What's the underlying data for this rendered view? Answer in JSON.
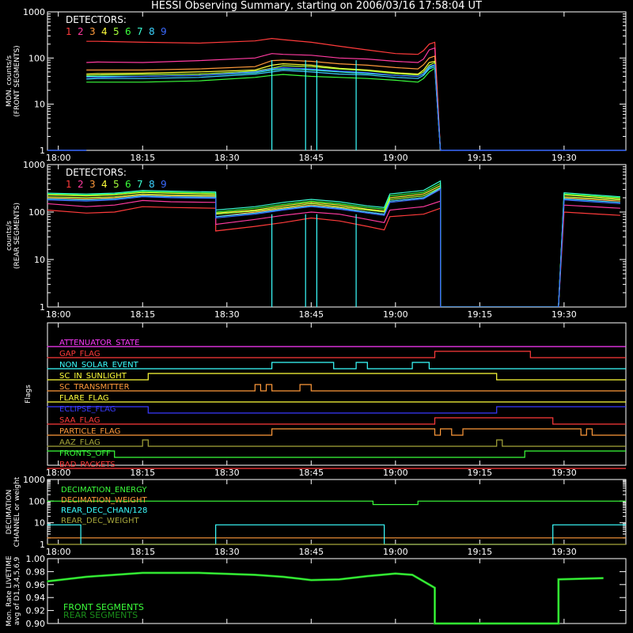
{
  "title": "HESSI Observing Summary, starting on 2006/03/16 17:58:04 UT",
  "time_ticks": [
    "18:00",
    "18:15",
    "18:30",
    "18:45",
    "19:00",
    "19:15",
    "19:30"
  ],
  "detector_colors": [
    "#ff3b3b",
    "#ff3ba0",
    "#ff9a3b",
    "#ffff3b",
    "#a6ff3b",
    "#3bff3b",
    "#3bffd2",
    "#3bd2ff",
    "#3b6aff"
  ],
  "chart_data": [
    {
      "type": "line",
      "name": "front",
      "ylabel": [
        "MON. counts/s",
        "(FRONT SEGMENTS)"
      ],
      "legend_title": "DETECTORS:",
      "legend_labels": [
        "1",
        "2",
        "3",
        "4",
        "5",
        "6",
        "7",
        "8",
        "9"
      ],
      "yscale": "log",
      "ylim": [
        1,
        1000
      ],
      "ytick_labels": [
        "1",
        "10",
        "100",
        "1000"
      ],
      "x": [
        "18:05",
        "18:07",
        "18:15",
        "18:25",
        "18:35",
        "18:38",
        "18:40",
        "18:45",
        "18:50",
        "18:55",
        "19:00",
        "19:04",
        "19:05",
        "19:06",
        "19:07",
        "19:08"
      ],
      "series": [
        {
          "values": [
            230,
            230,
            220,
            210,
            235,
            265,
            250,
            220,
            180,
            150,
            125,
            120,
            145,
            200,
            220,
            1
          ]
        },
        {
          "values": [
            80,
            82,
            80,
            88,
            100,
            125,
            120,
            115,
            100,
            95,
            85,
            80,
            95,
            150,
            165,
            1
          ]
        },
        {
          "values": [
            55,
            55,
            55,
            58,
            65,
            88,
            90,
            85,
            75,
            70,
            62,
            58,
            72,
            100,
            110,
            1
          ]
        },
        {
          "values": [
            45,
            46,
            47,
            50,
            55,
            70,
            75,
            70,
            60,
            55,
            48,
            45,
            55,
            80,
            85,
            1
          ]
        },
        {
          "values": [
            42,
            43,
            44,
            45,
            52,
            60,
            68,
            65,
            58,
            53,
            46,
            43,
            50,
            70,
            80,
            1
          ]
        },
        {
          "values": [
            30,
            30,
            30,
            32,
            38,
            42,
            44,
            40,
            38,
            36,
            33,
            30,
            36,
            50,
            60,
            1
          ]
        },
        {
          "values": [
            40,
            40,
            40,
            42,
            48,
            55,
            58,
            55,
            50,
            46,
            42,
            40,
            45,
            62,
            70,
            1
          ]
        },
        {
          "values": [
            35,
            36,
            36,
            38,
            45,
            50,
            54,
            50,
            45,
            43,
            38,
            36,
            42,
            58,
            64,
            1
          ]
        },
        {
          "values": [
            38,
            38,
            40,
            42,
            50,
            58,
            62,
            58,
            52,
            48,
            42,
            40,
            46,
            66,
            72,
            1
          ]
        }
      ]
    },
    {
      "type": "line",
      "name": "rear",
      "ylabel": [
        "counts/s",
        "(REAR SEGMENTS)"
      ],
      "legend_title": "DETECTORS:",
      "legend_labels": [
        "1",
        "2",
        "3",
        "4",
        "5",
        "6",
        "7",
        "8",
        "9"
      ],
      "yscale": "log",
      "ylim": [
        1,
        1000
      ],
      "ytick_labels": [
        "1",
        "10",
        "100",
        "1000"
      ],
      "x": [
        "17:58",
        "18:05",
        "18:10",
        "18:15",
        "18:20",
        "18:28",
        "18:28",
        "18:35",
        "18:40",
        "18:45",
        "18:50",
        "18:55",
        "18:58",
        "18:59",
        "19:05",
        "19:08",
        "19:08",
        "19:29",
        "19:30",
        "19:40"
      ],
      "series": [
        {
          "values": [
            110,
            95,
            100,
            130,
            125,
            120,
            40,
            50,
            60,
            75,
            65,
            50,
            42,
            80,
            90,
            120,
            1,
            1,
            100,
            85
          ]
        },
        {
          "values": [
            150,
            130,
            140,
            175,
            165,
            160,
            55,
            70,
            85,
            100,
            90,
            70,
            60,
            110,
            130,
            170,
            1,
            1,
            140,
            120
          ]
        },
        {
          "values": [
            200,
            190,
            200,
            230,
            220,
            215,
            80,
            100,
            120,
            140,
            125,
            100,
            90,
            170,
            200,
            300,
            1,
            1,
            200,
            170
          ]
        },
        {
          "values": [
            230,
            220,
            230,
            260,
            250,
            240,
            95,
            110,
            135,
            160,
            140,
            115,
            105,
            200,
            240,
            360,
            1,
            1,
            230,
            190
          ]
        },
        {
          "values": [
            210,
            200,
            210,
            240,
            230,
            225,
            90,
            105,
            125,
            150,
            130,
            110,
            100,
            185,
            220,
            330,
            1,
            1,
            210,
            180
          ]
        },
        {
          "values": [
            240,
            230,
            240,
            270,
            260,
            250,
            100,
            120,
            145,
            170,
            150,
            125,
            115,
            220,
            260,
            400,
            1,
            1,
            240,
            200
          ]
        },
        {
          "values": [
            250,
            240,
            250,
            285,
            275,
            265,
            110,
            130,
            160,
            185,
            165,
            135,
            125,
            240,
            285,
            450,
            1,
            1,
            255,
            210
          ]
        },
        {
          "values": [
            190,
            180,
            190,
            220,
            210,
            205,
            80,
            95,
            115,
            135,
            120,
            100,
            90,
            170,
            200,
            320,
            1,
            1,
            190,
            160
          ]
        },
        {
          "values": [
            180,
            170,
            180,
            210,
            200,
            195,
            75,
            90,
            110,
            130,
            115,
            95,
            85,
            160,
            190,
            300,
            1,
            1,
            180,
            150
          ]
        }
      ]
    },
    {
      "type": "step",
      "name": "flags",
      "ylabel": "Flags",
      "flags": [
        {
          "label": "ATTENUATOR_STATE",
          "color": "#ff3bff",
          "steps": [
            [
              "17:58",
              0
            ]
          ]
        },
        {
          "label": "GAP_FLAG",
          "color": "#ff3b3b",
          "steps": [
            [
              "17:58",
              0
            ],
            [
              "19:07",
              1
            ],
            [
              "19:24",
              0
            ]
          ]
        },
        {
          "label": "NON_SOLAR_EVENT",
          "color": "#3bffff",
          "steps": [
            [
              "17:58",
              0
            ],
            [
              "18:38",
              1
            ],
            [
              "18:49",
              0
            ],
            [
              "18:53",
              1
            ],
            [
              "18:55",
              0
            ],
            [
              "19:03",
              1
            ],
            [
              "19:06",
              0
            ]
          ]
        },
        {
          "label": "SC_IN_SUNLIGHT",
          "color": "#ffff3b",
          "steps": [
            [
              "17:58",
              0
            ],
            [
              "18:16",
              1
            ],
            [
              "19:18",
              0
            ]
          ]
        },
        {
          "label": "SC_TRANSMITTER",
          "color": "#ff9a3b",
          "steps": [
            [
              "17:58",
              0
            ],
            [
              "18:35",
              1
            ],
            [
              "18:36",
              0
            ],
            [
              "18:37",
              1
            ],
            [
              "18:38",
              0
            ],
            [
              "18:43",
              1
            ],
            [
              "18:45",
              0
            ],
            [
              "18:54",
              0
            ]
          ]
        },
        {
          "label": "FLARE_FLAG",
          "color": "#ffff3b",
          "steps": [
            [
              "17:58",
              0
            ]
          ]
        },
        {
          "label": "ECLIPSE_FLAG",
          "color": "#3b3bff",
          "steps": [
            [
              "17:58",
              1
            ],
            [
              "18:16",
              0
            ],
            [
              "19:18",
              1
            ]
          ]
        },
        {
          "label": "SAA_FLAG",
          "color": "#ff3b3b",
          "steps": [
            [
              "17:58",
              0
            ],
            [
              "19:07",
              1
            ],
            [
              "19:28",
              0
            ]
          ]
        },
        {
          "label": "PARTICLE_FLAG",
          "color": "#ff9a3b",
          "steps": [
            [
              "17:58",
              0
            ],
            [
              "18:38",
              1
            ],
            [
              "19:07",
              0
            ],
            [
              "19:08",
              1
            ],
            [
              "19:10",
              0
            ],
            [
              "19:12",
              1
            ],
            [
              "19:33",
              0
            ],
            [
              "19:34",
              1
            ],
            [
              "19:35",
              0
            ]
          ]
        },
        {
          "label": "AAZ_FLAG",
          "color": "#a6a63b",
          "steps": [
            [
              "17:58",
              0
            ],
            [
              "18:15",
              1
            ],
            [
              "18:16",
              0
            ],
            [
              "19:18",
              1
            ],
            [
              "19:19",
              0
            ]
          ]
        },
        {
          "label": "FRONTS_OFF",
          "color": "#3bff3b",
          "steps": [
            [
              "17:58",
              1
            ],
            [
              "18:10",
              0
            ],
            [
              "19:23",
              1
            ]
          ]
        },
        {
          "label": "BAD_PACKETS",
          "color": "#ff3b3b",
          "steps": [
            [
              "17:58",
              0
            ]
          ]
        }
      ]
    },
    {
      "type": "step",
      "name": "decimation",
      "ylabel": [
        "DECIMATION",
        "CHANNEL or weight"
      ],
      "yscale": "log",
      "ylim": [
        1,
        1000
      ],
      "ytick_labels": [
        "1",
        "10",
        "100",
        "1000"
      ],
      "legend": [
        {
          "label": "DECIMATION_ENERGY",
          "color": "#3bff3b"
        },
        {
          "label": "DECIMATION_WEIGHT",
          "color": "#ff9a3b"
        },
        {
          "label": "REAR_DEC_CHAN/128",
          "color": "#3bffff"
        },
        {
          "label": "REAR_DEC_WEIGHT",
          "color": "#a6a63b"
        }
      ],
      "series": [
        {
          "name": "DECIMATION_ENERGY",
          "steps": [
            [
              "17:58",
              100
            ],
            [
              "18:56",
              70
            ],
            [
              "19:04",
              100
            ],
            [
              "19:37",
              100
            ]
          ]
        },
        {
          "name": "DECIMATION_WEIGHT",
          "steps": [
            [
              "17:58",
              2
            ],
            [
              "19:37",
              2
            ]
          ]
        },
        {
          "name": "REAR_DEC_CHAN/128",
          "steps": [
            [
              "17:58",
              8
            ],
            [
              "18:04",
              1
            ],
            [
              "18:28",
              8
            ],
            [
              "18:58",
              1
            ],
            [
              "19:28",
              8
            ]
          ]
        },
        {
          "name": "REAR_DEC_WEIGHT",
          "steps": [
            [
              "17:58",
              1
            ],
            [
              "19:37",
              1
            ]
          ]
        }
      ]
    },
    {
      "type": "line",
      "name": "livetime",
      "ylabel": [
        "Mon. Rate LIVETIME",
        "avg of D1,3,4,5,6,9"
      ],
      "ylim": [
        0.9,
        1.0
      ],
      "ytick_labels": [
        "0.90",
        "0.92",
        "0.94",
        "0.96",
        "0.98",
        "1.00"
      ],
      "legend": [
        {
          "label": "FRONT SEGMENTS",
          "color": "#3bff3b"
        },
        {
          "label": "REAR SEGMENTS",
          "color": "#1a8f1a"
        }
      ],
      "x": [
        "17:58",
        "18:05",
        "18:15",
        "18:25",
        "18:35",
        "18:40",
        "18:45",
        "18:50",
        "18:55",
        "19:00",
        "19:03",
        "19:05",
        "19:07",
        "19:07",
        "19:29",
        "19:29",
        "19:37"
      ],
      "values": [
        0.965,
        0.972,
        0.978,
        0.978,
        0.975,
        0.972,
        0.967,
        0.968,
        0.973,
        0.977,
        0.975,
        0.965,
        0.955,
        0.9,
        0.9,
        0.968,
        0.97
      ]
    }
  ]
}
